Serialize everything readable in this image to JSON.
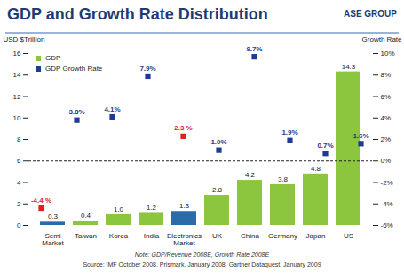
{
  "chart_data": {
    "type": "bar",
    "title": "GDP and Growth Rate Distribution",
    "logo": "ASE GROUP",
    "ylabel": "USD $Trillion",
    "y2label": "Growth Rate",
    "note": "Note: GDP/Revenue 2008E, Growth Rate 2008E",
    "source": "Source: IMF October 2008, Prismark, January 2008, Gartner Dataquest, January 2009",
    "categories": [
      "Semi Market",
      "Taiwan",
      "Korea",
      "India",
      "Electronics Market",
      "UK",
      "China",
      "Germany",
      "Japan",
      "US"
    ],
    "series": [
      {
        "name": "GDP",
        "type": "bar",
        "color": "#8cc63f",
        "colors": [
          "#2a6ca8",
          "#8cc63f",
          "#8cc63f",
          "#8cc63f",
          "#2a6ca8",
          "#8cc63f",
          "#8cc63f",
          "#8cc63f",
          "#8cc63f",
          "#8cc63f"
        ],
        "values": [
          0.3,
          0.4,
          1.0,
          1.2,
          1.3,
          2.8,
          4.2,
          3.8,
          4.8,
          14.3
        ],
        "value_labels": [
          "0.3",
          "0.4",
          "1.0",
          "1.2",
          "1.3",
          "2.8",
          "4.2",
          "3.8",
          "4.8",
          "14.3"
        ]
      },
      {
        "name": "GDP Growth Rate",
        "type": "scatter",
        "axis": "y2",
        "marker": "square",
        "color": "#1f3b8f",
        "colors": [
          "#e02020",
          "#1f3b8f",
          "#1f3b8f",
          "#1f3b8f",
          "#e02020",
          "#1f3b8f",
          "#1f3b8f",
          "#1f3b8f",
          "#1f3b8f",
          "#1f3b8f"
        ],
        "values": [
          -4.4,
          3.8,
          4.1,
          7.9,
          2.3,
          1.0,
          9.7,
          1.9,
          0.7,
          1.6
        ],
        "value_labels": [
          "-4.4 %",
          "3.8%",
          "4.1%",
          "7.9%",
          "2.3 %",
          "1.0%",
          "9.7%",
          "1.9%",
          "0.7%",
          "1.6%"
        ]
      }
    ],
    "ylim": [
      0,
      16
    ],
    "yticks": [
      0,
      2,
      4,
      6,
      8,
      10,
      12,
      14,
      16
    ],
    "y2lim": [
      -6,
      10
    ],
    "y2ticks": [
      {
        "value": -6,
        "label": "-6%"
      },
      {
        "value": -4,
        "label": "-4%"
      },
      {
        "value": -2,
        "label": "-2%"
      },
      {
        "value": 0,
        "label": "0%"
      },
      {
        "value": 2,
        "label": "2%"
      },
      {
        "value": 4,
        "label": "4%"
      },
      {
        "value": 6,
        "label": "6%"
      },
      {
        "value": 8,
        "label": "8%"
      },
      {
        "value": 10,
        "label": "10%"
      }
    ],
    "data_labels": true,
    "legend": "top-left",
    "grid": false
  }
}
